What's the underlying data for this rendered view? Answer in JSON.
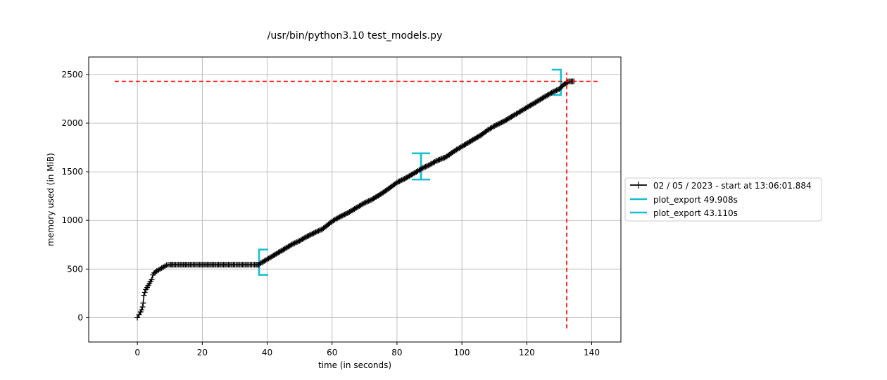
{
  "chart_data": {
    "type": "line",
    "title": "/usr/bin/python3.10 test_models.py",
    "xlabel": "time (in seconds)",
    "ylabel": "memory used (in MiB)",
    "xlim": [
      -15,
      149
    ],
    "ylim": [
      -250,
      2680
    ],
    "x_ticks": [
      0,
      20,
      40,
      60,
      80,
      100,
      120,
      140
    ],
    "y_ticks": [
      0,
      500,
      1000,
      1500,
      2000,
      2500
    ],
    "grid": true,
    "legend_position": "outside-right",
    "colors": {
      "memory": "#000000",
      "brackets": "#17becf",
      "peak": "#ff0000"
    },
    "series": [
      {
        "name": "02 / 05 / 2023 - start at 13:06:01.884",
        "x": [
          0,
          0.5,
          1,
          1.3,
          1.6,
          1.8,
          2,
          2.3,
          2.6,
          3,
          3.3,
          3.7,
          4.0,
          4.4,
          4.8,
          5.2,
          5.6,
          6,
          6.5,
          7,
          7.5,
          8,
          8.5,
          9,
          9.5,
          10,
          11,
          13,
          16,
          20,
          25,
          30,
          34,
          36.5,
          37.5,
          38,
          40,
          42,
          45,
          48,
          50,
          52,
          55,
          57,
          60,
          62,
          65,
          68,
          70,
          72,
          75,
          78,
          80,
          83,
          86,
          88,
          90,
          92,
          95,
          98,
          100,
          103,
          106,
          108,
          110,
          113,
          116,
          120,
          123,
          126,
          128,
          130,
          131.5,
          133,
          134.5
        ],
        "y": [
          0,
          30,
          60,
          80,
          110,
          150,
          230,
          260,
          290,
          310,
          330,
          350,
          370,
          390,
          440,
          460,
          470,
          480,
          490,
          500,
          510,
          520,
          530,
          540,
          545,
          545,
          545,
          545,
          545,
          545,
          545,
          545,
          545,
          545,
          545,
          560,
          600,
          640,
          700,
          760,
          790,
          830,
          880,
          910,
          990,
          1030,
          1080,
          1140,
          1180,
          1210,
          1270,
          1340,
          1390,
          1440,
          1500,
          1540,
          1570,
          1610,
          1650,
          1720,
          1760,
          1820,
          1880,
          1930,
          1970,
          2020,
          2080,
          2160,
          2220,
          2280,
          2320,
          2350,
          2400,
          2430,
          2430
        ]
      }
    ],
    "brackets": [
      {
        "name": "plot_export 49.908s",
        "start": 37.5,
        "end": 87.4,
        "start_y_range": [
          440,
          700
        ],
        "end_y_range": [
          1420,
          1690
        ]
      },
      {
        "name": "plot_export 43.110s",
        "start": 87.4,
        "end": 130.5,
        "start_y_range": [
          1420,
          1690
        ],
        "end_y_range": [
          2290,
          2550
        ]
      }
    ],
    "peak": {
      "x": 132.3,
      "y": 2430,
      "hline_x": [
        -7,
        142
      ],
      "vline_y": [
        -110,
        2520
      ]
    }
  }
}
